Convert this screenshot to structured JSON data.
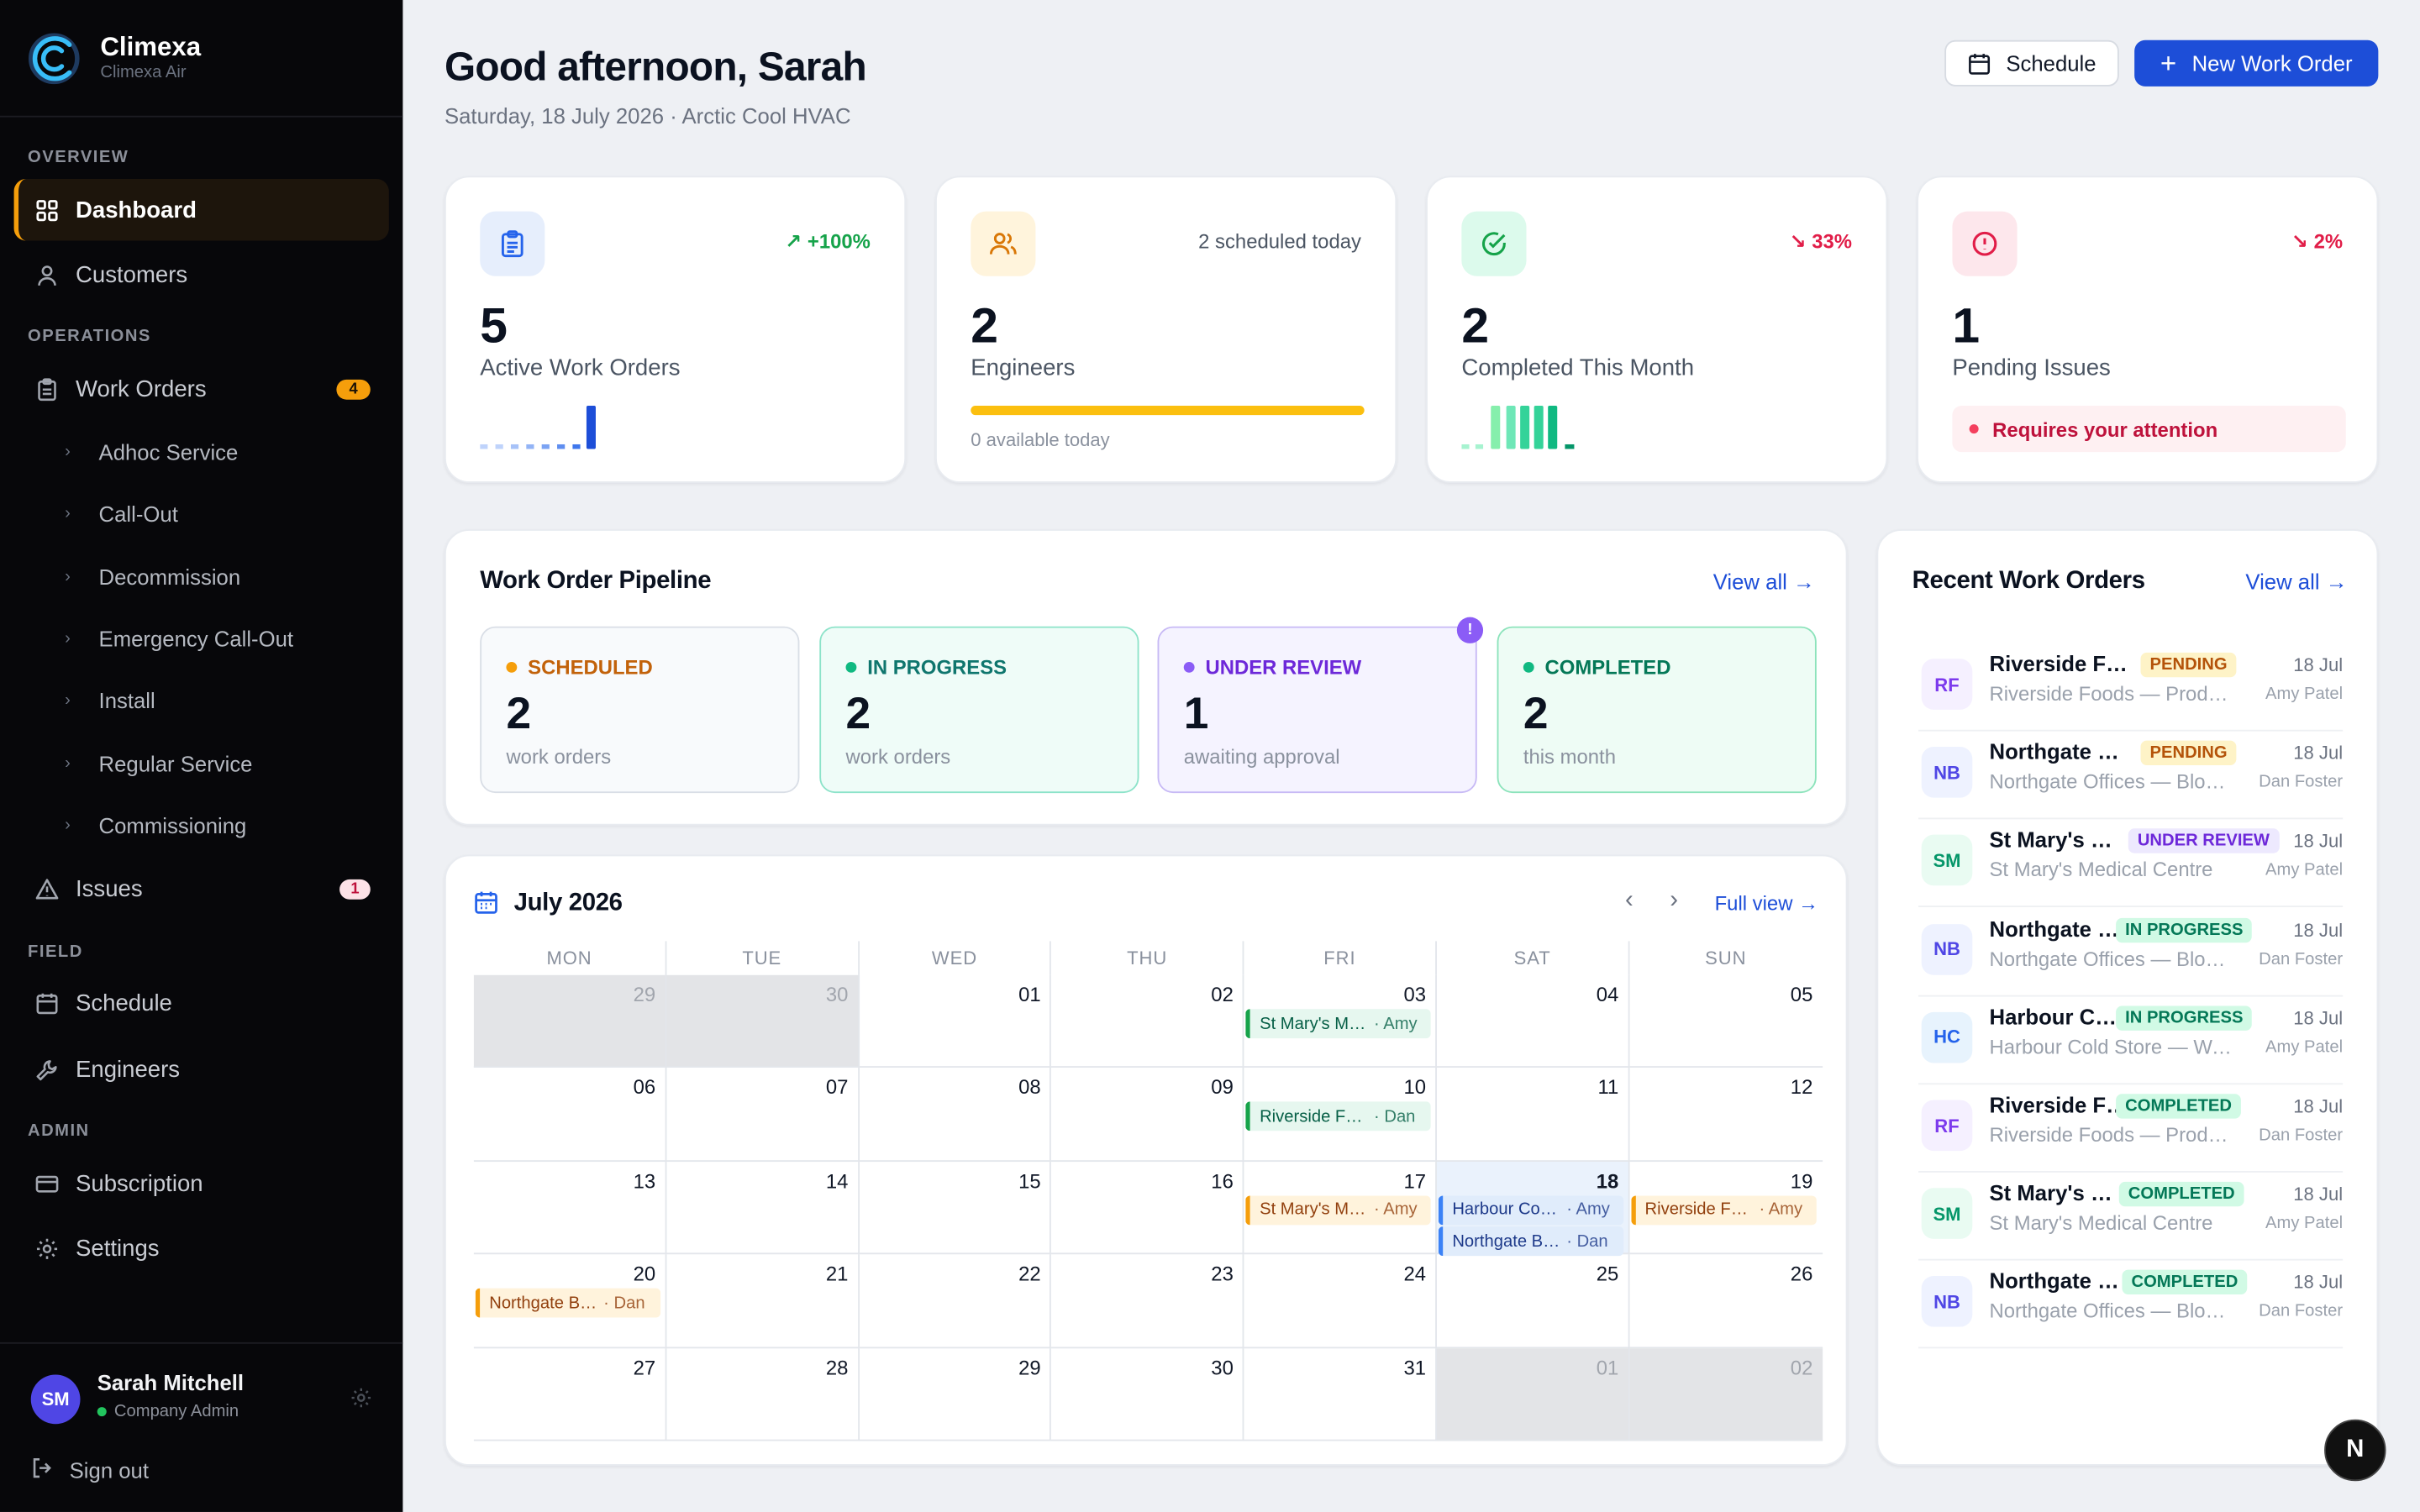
{
  "brand": {
    "name": "Climexa",
    "subtitle": "Climexa Air"
  },
  "sidebar": {
    "sections": [
      "OVERVIEW",
      "OPERATIONS",
      "FIELD",
      "ADMIN"
    ],
    "dashboard": "Dashboard",
    "customers": "Customers",
    "work_orders": "Work Orders",
    "work_orders_count": "4",
    "sub_items": [
      "Adhoc Service",
      "Call-Out",
      "Decommission",
      "Emergency Call-Out",
      "Install",
      "Regular Service",
      "Commissioning"
    ],
    "issues": "Issues",
    "issues_count": "1",
    "schedule": "Schedule",
    "engineers": "Engineers",
    "subscription": "Subscription",
    "settings": "Settings"
  },
  "user": {
    "initials": "SM",
    "name": "Sarah Mitchell",
    "role": "Company Admin",
    "sign_out": "Sign out"
  },
  "header": {
    "greeting": "Good afternoon, Sarah",
    "date_line": "Saturday, 18 July 2026 · Arctic Cool HVAC",
    "schedule_btn": "Schedule",
    "new_btn": "New Work Order"
  },
  "stats": [
    {
      "value": "5",
      "label": "Active Work Orders",
      "trend": "+100%",
      "color": "#16a34a"
    },
    {
      "value": "2",
      "label": "Engineers",
      "trend": "2 scheduled today",
      "sub": "0 available today",
      "progress": 1.0
    },
    {
      "value": "2",
      "label": "Completed This Month",
      "trend": "33%",
      "color": "#e11d48"
    },
    {
      "value": "1",
      "label": "Pending Issues",
      "trend": "2%",
      "color": "#e11d48",
      "alert": "Requires your attention"
    }
  ],
  "pipeline": {
    "title": "Work Order Pipeline",
    "view_all": "View all",
    "stages": [
      {
        "label": "SCHEDULED",
        "value": "2",
        "desc": "work orders"
      },
      {
        "label": "IN PROGRESS",
        "value": "2",
        "desc": "work orders"
      },
      {
        "label": "UNDER REVIEW",
        "value": "1",
        "desc": "awaiting approval",
        "flag": "!"
      },
      {
        "label": "COMPLETED",
        "value": "2",
        "desc": "this month"
      }
    ]
  },
  "calendar": {
    "title": "July 2026",
    "full_view": "Full view",
    "days": [
      "MON",
      "TUE",
      "WED",
      "THU",
      "FRI",
      "SAT",
      "SUN"
    ],
    "dates": [
      "29",
      "30",
      "01",
      "02",
      "03",
      "04",
      "05",
      "06",
      "07",
      "08",
      "09",
      "10",
      "11",
      "12",
      "13",
      "14",
      "15",
      "16",
      "17",
      "18",
      "19",
      "20",
      "21",
      "22",
      "23",
      "24",
      "25",
      "26",
      "27",
      "28",
      "29",
      "30",
      "31",
      "01",
      "02"
    ],
    "events": [
      {
        "title": "St Mary's Medical Centre",
        "who": "· Amy"
      },
      {
        "title": "Riverside Foods",
        "who": "· Dan"
      },
      {
        "title": "St Mary's Medical Centre",
        "who": "· Amy"
      },
      {
        "title": "Harbour Cold Store",
        "who": "· Amy"
      },
      {
        "title": "Northgate Business Park",
        "who": "· Dan"
      },
      {
        "title": "Riverside Foods",
        "who": "· Amy"
      },
      {
        "title": "Northgate Business Park",
        "who": "· Dan"
      }
    ]
  },
  "recent": {
    "title": "Recent Work Orders",
    "view_all": "View all",
    "items": [
      {
        "ini": "RF",
        "title": "Riverside Foods",
        "sub": "Riverside Foods — Production",
        "status": "PENDING",
        "date": "18 Jul",
        "person": "Amy Patel"
      },
      {
        "ini": "NB",
        "title": "Northgate Business Park",
        "sub": "Northgate Offices — Block A",
        "status": "PENDING",
        "date": "18 Jul",
        "person": "Dan Foster"
      },
      {
        "ini": "SM",
        "title": "St Mary's Medical Centre",
        "sub": "St Mary's Medical Centre",
        "status": "UNDER REVIEW",
        "date": "18 Jul",
        "person": "Amy Patel"
      },
      {
        "ini": "NB",
        "title": "Northgate Business Park",
        "sub": "Northgate Offices — Block A",
        "status": "IN PROGRESS",
        "date": "18 Jul",
        "person": "Dan Foster"
      },
      {
        "ini": "HC",
        "title": "Harbour Cold Store",
        "sub": "Harbour Cold Store — Warehouse",
        "status": "IN PROGRESS",
        "date": "18 Jul",
        "person": "Amy Patel"
      },
      {
        "ini": "RF",
        "title": "Riverside Foods",
        "sub": "Riverside Foods — Production",
        "status": "COMPLETED",
        "date": "18 Jul",
        "person": "Dan Foster"
      },
      {
        "ini": "SM",
        "title": "St Mary's Medical Centre",
        "sub": "St Mary's Medical Centre",
        "status": "COMPLETED",
        "date": "18 Jul",
        "person": "Amy Patel"
      },
      {
        "ini": "NB",
        "title": "Northgate Business Park",
        "sub": "Northgate Offices — Block A",
        "status": "COMPLETED",
        "date": "18 Jul",
        "person": "Dan Foster"
      }
    ]
  },
  "fab": "N"
}
